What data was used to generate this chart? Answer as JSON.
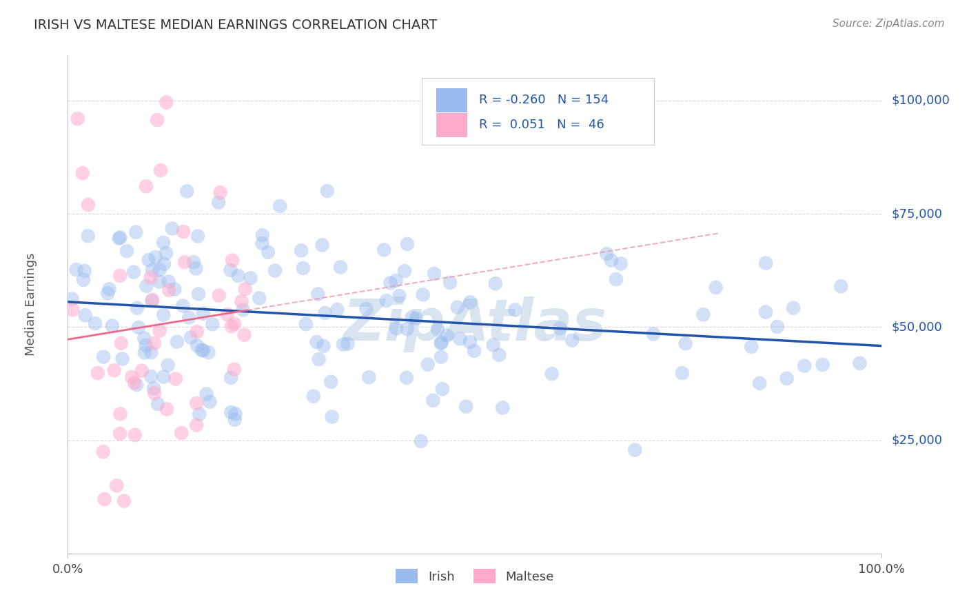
{
  "title": "IRISH VS MALTESE MEDIAN EARNINGS CORRELATION CHART",
  "source_text": "Source: ZipAtlas.com",
  "ylabel": "Median Earnings",
  "xlim": [
    0,
    1
  ],
  "ylim": [
    0,
    110000
  ],
  "yticks": [
    25000,
    50000,
    75000,
    100000
  ],
  "ytick_labels": [
    "$25,000",
    "$50,000",
    "$75,000",
    "$100,000"
  ],
  "xtick_labels": [
    "0.0%",
    "100.0%"
  ],
  "irish_scatter_color": "#99BBEE",
  "maltese_scatter_color": "#FFAACC",
  "irish_line_color": "#2255AA",
  "maltese_line_color": "#EE6688",
  "maltese_dash_color": "#EE99AA",
  "irish_R": -0.26,
  "irish_N": 154,
  "maltese_R": 0.051,
  "maltese_N": 46,
  "watermark": "ZipAtlas",
  "watermark_color": "#D8E4F0",
  "background_color": "#FFFFFF",
  "grid_color": "#CCCCCC",
  "legend_irish_label": "Irish",
  "legend_maltese_label": "Maltese",
  "right_label_color": "#2255AA",
  "title_color": "#333333",
  "axis_label_color": "#555555"
}
